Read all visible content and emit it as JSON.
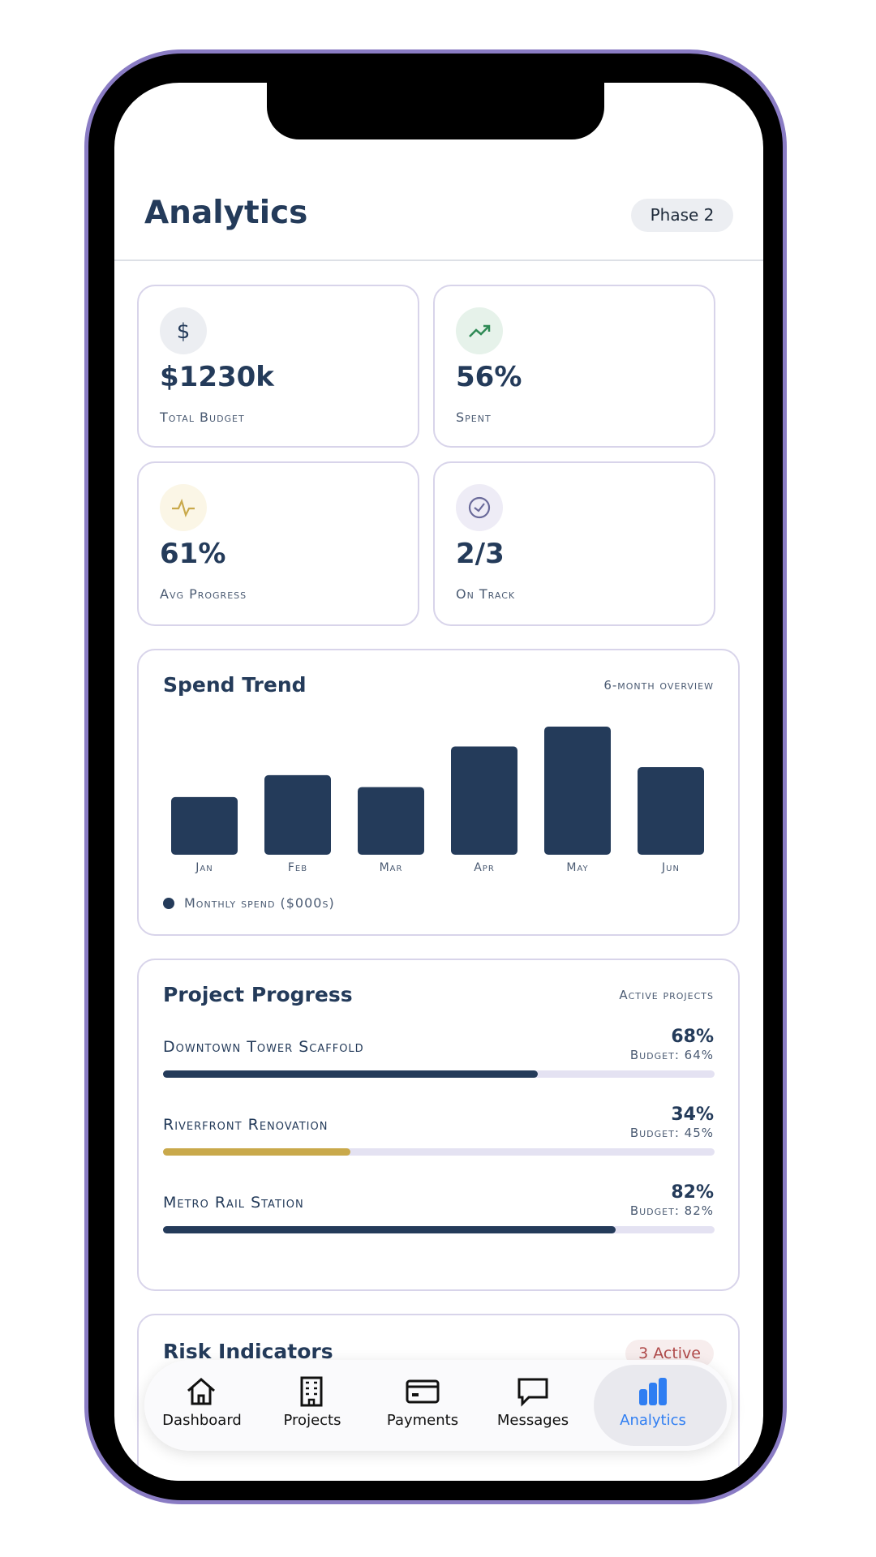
{
  "header": {
    "title": "Analytics",
    "badge": "Phase 2"
  },
  "stats": [
    {
      "value": "$1230k",
      "label": "Total Budget"
    },
    {
      "value": "56%",
      "label": "Spent"
    },
    {
      "value": "61%",
      "label": "Avg Progress"
    },
    {
      "value": "2/3",
      "label": "On Track"
    }
  ],
  "spend_trend": {
    "title": "Spend Trend",
    "subtitle": "6-month overview",
    "categories": [
      "Jan",
      "Feb",
      "Mar",
      "Apr",
      "May",
      "Jun"
    ],
    "values": [
      145,
      200,
      170,
      272,
      322,
      220
    ],
    "legend": "Monthly spend ($000s)",
    "color": "#243b5a"
  },
  "project_progress": {
    "title": "Project Progress",
    "subtitle": "Active projects",
    "projects": [
      {
        "name": "Downtown Tower Scaffold",
        "progress": {
          "value": 68,
          "label": "68%"
        },
        "budget": "Budget: 64%",
        "color": "#243b5a"
      },
      {
        "name": "Riverfront Renovation",
        "progress": {
          "value": 34,
          "label": "34%"
        },
        "budget": "Budget: 45%",
        "color": "#c9a94b"
      },
      {
        "name": "Metro Rail Station",
        "progress": {
          "value": 82,
          "label": "82%"
        },
        "budget": "Budget: 82%",
        "color": "#243b5a"
      }
    ]
  },
  "risk": {
    "title": "Risk Indicators",
    "badge": "3 Active"
  },
  "nav": [
    "Dashboard",
    "Projects",
    "Payments",
    "Messages",
    "Analytics"
  ]
}
